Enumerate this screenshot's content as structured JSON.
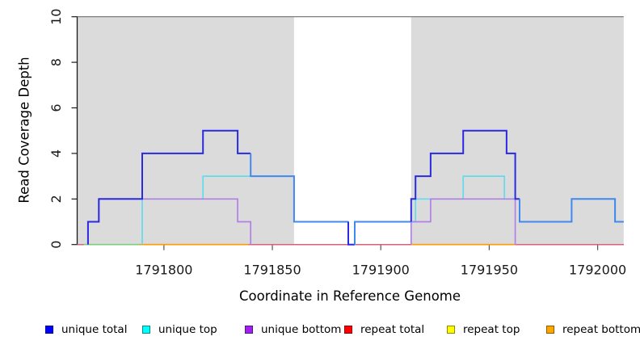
{
  "chart_data": {
    "type": "line",
    "subtype": "step-coverage",
    "title": "",
    "xlabel": "Coordinate in Reference Genome",
    "ylabel": "Read Coverage Depth",
    "xlim": [
      1791760,
      1792012
    ],
    "ylim": [
      0,
      10
    ],
    "x_ticks": [
      1791800,
      1791850,
      1791900,
      1791950,
      1792000
    ],
    "y_ticks": [
      0,
      2,
      4,
      6,
      8,
      10
    ],
    "grid": false,
    "shaded_region_color": "#DBDBDB",
    "shaded_regions": [
      [
        1791760,
        1791860
      ],
      [
        1791914,
        1792012
      ]
    ],
    "top_border_depth": 10,
    "series": [
      {
        "name": "unique total",
        "legend_color": "#0000FF",
        "line_color": "#2a2ae0",
        "overlap_color": "#4189ee",
        "steps": [
          [
            1791765,
            1
          ],
          [
            1791770,
            2
          ],
          [
            1791790,
            4
          ],
          [
            1791818,
            5
          ],
          [
            1791834,
            4
          ],
          [
            1791840,
            3
          ],
          [
            1791860,
            1
          ],
          [
            1791885,
            0
          ],
          [
            1791888,
            1
          ],
          [
            1791914,
            2
          ],
          [
            1791916,
            3
          ],
          [
            1791923,
            4
          ],
          [
            1791938,
            5
          ],
          [
            1791958,
            4
          ],
          [
            1791962,
            2
          ],
          [
            1791964,
            1
          ],
          [
            1791988,
            2
          ],
          [
            1792008,
            1
          ]
        ],
        "draw_ranges": [
          [
            1791765,
            1792012
          ]
        ]
      },
      {
        "name": "unique top",
        "legend_color": "#00FFFF",
        "line_color": "#63dbec",
        "steps": [
          [
            1791790,
            2
          ],
          [
            1791818,
            3
          ],
          [
            1791860,
            1
          ],
          [
            1791885,
            0
          ],
          [
            1791888,
            1
          ],
          [
            1791916,
            2
          ],
          [
            1791938,
            3
          ],
          [
            1791957,
            2
          ],
          [
            1791964,
            1
          ],
          [
            1791988,
            2
          ],
          [
            1792008,
            1
          ]
        ],
        "draw_ranges": [
          [
            1791790,
            1792012
          ]
        ]
      },
      {
        "name": "unique bottom",
        "legend_color": "#A020F0",
        "line_color": "#b27fe6",
        "steps": [
          [
            1791765,
            1
          ],
          [
            1791770,
            2
          ],
          [
            1791834,
            1
          ],
          [
            1791840,
            0
          ],
          [
            1791914,
            1
          ],
          [
            1791923,
            2
          ],
          [
            1791962,
            0
          ]
        ],
        "draw_ranges": [
          [
            1791765,
            1791840
          ],
          [
            1791914,
            1791962
          ]
        ]
      },
      {
        "name": "repeat total",
        "legend_color": "#FF0000",
        "line_color": "#d4617e",
        "steps": [
          [
            1791760,
            0
          ]
        ],
        "draw_ranges": [
          [
            1791760,
            1792012
          ]
        ]
      },
      {
        "name": "repeat top",
        "legend_color": "#FFFF00",
        "line_color": "#ffff00",
        "steps": [
          [
            1791760,
            0
          ]
        ],
        "draw_ranges": []
      },
      {
        "name": "repeat bottom",
        "legend_color": "#FFA500",
        "line_color": "#ff9a00",
        "steps": [
          [
            1791760,
            0
          ]
        ],
        "draw_ranges": [
          [
            1791789,
            1791839
          ],
          [
            1791914,
            1791962
          ]
        ]
      },
      {
        "name": "baseline-accent-unlabeled",
        "legend_color": null,
        "line_color": "#7ccf7c",
        "steps": [
          [
            1791760,
            0
          ]
        ],
        "draw_ranges": [
          [
            1791763,
            1791789
          ]
        ]
      }
    ],
    "legend": [
      {
        "label": "unique total",
        "color": "#0000FF"
      },
      {
        "label": "unique top",
        "color": "#00FFFF"
      },
      {
        "label": "unique bottom",
        "color": "#A020F0"
      },
      {
        "label": "repeat total",
        "color": "#FF0000"
      },
      {
        "label": "repeat top",
        "color": "#FFFF00"
      },
      {
        "label": "repeat bottom",
        "color": "#FFA500"
      }
    ],
    "legend_position": "bottom"
  }
}
